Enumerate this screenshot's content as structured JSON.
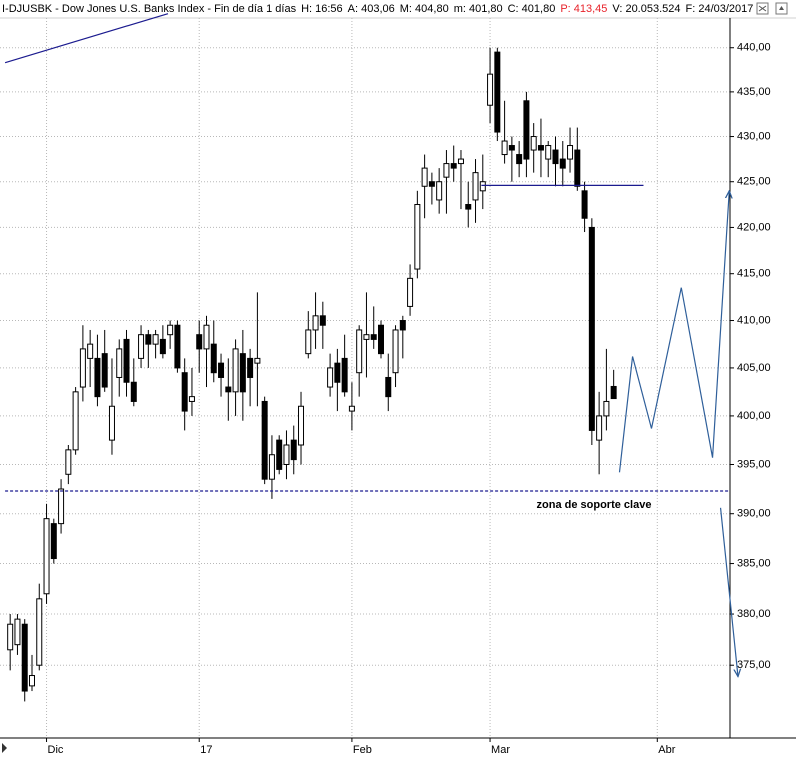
{
  "chart_data": {
    "type": "candlestick",
    "title": "I-DJUSBK - Dow Jones U.S. Banks Index - Fin de día 1 días",
    "header_fields": [
      {
        "text": "H: 16:56",
        "color": "#000000"
      },
      {
        "text": "A: 403,06",
        "color": "#000000"
      },
      {
        "text": "M: 404,80",
        "color": "#000000"
      },
      {
        "text": "m: 401,80",
        "color": "#000000"
      },
      {
        "text": "C: 401,80",
        "color": "#000000"
      },
      {
        "text": "P: 413,45",
        "color": "#e8222a"
      },
      {
        "text": "V: 20.053.524",
        "color": "#000000"
      },
      {
        "text": "F: 24/03/2017",
        "color": "#000000"
      }
    ],
    "x": [
      0,
      1,
      2,
      3,
      4,
      5,
      6,
      7,
      8,
      9,
      10,
      11,
      12,
      13,
      14,
      15,
      16,
      17,
      18,
      19,
      20,
      21,
      22,
      23,
      24,
      25,
      26,
      27,
      28,
      29,
      30,
      31,
      32,
      33,
      34,
      35,
      36,
      37,
      38,
      39,
      40,
      41,
      42,
      43,
      44,
      45,
      46,
      47,
      48,
      49,
      50,
      51,
      52,
      53,
      54,
      55,
      56,
      57,
      58,
      59,
      60,
      61,
      62,
      63,
      64,
      65,
      66,
      67,
      68,
      69,
      70,
      71,
      72,
      73,
      74,
      75,
      76,
      77,
      78,
      79,
      80,
      81,
      82,
      83
    ],
    "open": [
      376.5,
      377,
      379,
      373,
      375,
      382,
      389,
      389,
      394,
      396.5,
      403,
      406,
      406,
      406.5,
      397.5,
      404,
      408,
      403.5,
      406,
      408.5,
      407.5,
      408,
      408.5,
      409.5,
      404.5,
      401.5,
      408.5,
      407,
      407.5,
      405.5,
      403,
      402.5,
      406.5,
      406,
      405.5,
      401.5,
      393.5,
      397.5,
      395,
      397.5,
      397,
      406.5,
      409,
      410.5,
      403,
      405.5,
      406,
      400.5,
      404.5,
      408,
      408.5,
      409.5,
      404,
      404.5,
      410,
      411.5,
      415.5,
      424.5,
      425,
      423,
      425.5,
      427,
      427,
      422.5,
      423,
      424,
      433.5,
      439.5,
      428,
      429,
      428,
      434,
      428.5,
      429,
      427.5,
      428.5,
      427.5,
      427.5,
      428.5,
      424,
      420,
      397.5,
      400,
      403.06
    ],
    "high": [
      380,
      380,
      379.5,
      376,
      383,
      391,
      389.5,
      393.5,
      397,
      403,
      409.5,
      409,
      408.5,
      409,
      406,
      408,
      409,
      406,
      409.5,
      409,
      409,
      409.5,
      410,
      410,
      406,
      405,
      410,
      410.5,
      410,
      406.5,
      406,
      408,
      409,
      407,
      413,
      402,
      398,
      398,
      398.5,
      399,
      402.5,
      411,
      413,
      412,
      406.5,
      407,
      408.5,
      403.5,
      409.5,
      413,
      411.5,
      410,
      406.5,
      409.5,
      410.5,
      416,
      424,
      428,
      426,
      426.5,
      428.5,
      429,
      428.5,
      425,
      427.5,
      428,
      440,
      440,
      434,
      430,
      429.5,
      435,
      431.5,
      432,
      429.5,
      430,
      429.5,
      431,
      431,
      425,
      421,
      402.5,
      407,
      404.8
    ],
    "low": [
      374.5,
      376,
      371.5,
      372.5,
      374.5,
      381,
      385,
      388,
      393,
      396,
      401.5,
      403,
      401,
      402.5,
      396,
      402,
      402,
      401,
      405,
      405,
      406,
      406,
      407,
      404.5,
      398.5,
      400,
      404.5,
      403,
      403.5,
      402,
      399.5,
      400,
      399.5,
      401,
      401,
      393,
      391.5,
      394,
      393.5,
      394,
      395,
      406,
      407,
      407,
      402,
      400.5,
      402,
      398.5,
      402,
      404,
      407,
      406,
      400.5,
      403,
      406,
      410.5,
      414.5,
      421,
      422.5,
      421.5,
      421.5,
      425,
      422,
      420,
      420.5,
      422,
      431.5,
      429.5,
      427,
      425,
      425.5,
      425.5,
      426,
      425.5,
      425.5,
      424.5,
      424.5,
      426,
      424,
      419.5,
      397,
      394,
      398.5,
      401.8
    ],
    "close": [
      379,
      379.5,
      372.5,
      374,
      381.5,
      389.5,
      385.5,
      392.5,
      396.5,
      402.5,
      407,
      407.5,
      402,
      403,
      401,
      407,
      403.5,
      401.5,
      408.5,
      407.5,
      408.5,
      406.5,
      409.5,
      405,
      400.5,
      402,
      407,
      409.5,
      404.5,
      404,
      402.5,
      407,
      402.5,
      404,
      406,
      393.5,
      396,
      394.5,
      397,
      395.5,
      401,
      409,
      410.5,
      409.5,
      405,
      403.5,
      402.5,
      401,
      409,
      408.5,
      408,
      406.5,
      402,
      409,
      409,
      414.5,
      422.5,
      426.5,
      424.5,
      425,
      427,
      426.5,
      427.5,
      422,
      426,
      425,
      437,
      430.5,
      429.5,
      428.5,
      427,
      427.5,
      430,
      428.5,
      429,
      427,
      426.5,
      429,
      424.5,
      421,
      398.5,
      400,
      401.5,
      401.8
    ],
    "colors": {
      "up": "#ffffff",
      "down": "#000000",
      "outline": "#000000"
    },
    "xlim": [
      -1.4,
      99
    ],
    "ylim": [
      368,
      443.4
    ],
    "log_scale": true,
    "grid": true,
    "xticks": [
      {
        "value": 5,
        "label": "Dic"
      },
      {
        "value": 26,
        "label": "17"
      },
      {
        "value": 47,
        "label": "Feb"
      },
      {
        "value": 66,
        "label": "Mar"
      },
      {
        "value": 89,
        "label": "Abr"
      }
    ],
    "yticks": [
      {
        "value": 375,
        "label": "375,00"
      },
      {
        "value": 380,
        "label": "380,00"
      },
      {
        "value": 385,
        "label": "385,00"
      },
      {
        "value": 390,
        "label": "390,00"
      },
      {
        "value": 395,
        "label": "395,00"
      },
      {
        "value": 400,
        "label": "400,00"
      },
      {
        "value": 405,
        "label": "405,00"
      },
      {
        "value": 410,
        "label": "410,00"
      },
      {
        "value": 415,
        "label": "415,00"
      },
      {
        "value": 420,
        "label": "420,00"
      },
      {
        "value": 425,
        "label": "425,00"
      },
      {
        "value": 430,
        "label": "430,00"
      },
      {
        "value": 435,
        "label": "435,00"
      },
      {
        "value": 440,
        "label": "440,00"
      }
    ],
    "lines": [
      {
        "color": "#1b1b8f",
        "dashed": false,
        "arrow": false,
        "x": [
          -0.7,
          21.7
        ],
        "y": [
          438.3,
          443.9
        ]
      },
      {
        "color": "#1b1b8f",
        "dashed": false,
        "arrow": false,
        "x": [
          64.8,
          87.1
        ],
        "y": [
          424.6,
          424.6
        ]
      },
      {
        "color": "#1b1b8f",
        "dashed": true,
        "arrow": false,
        "x": [
          -0.7,
          99
        ],
        "y": [
          392.3,
          392.3
        ]
      },
      {
        "color": "#2f5f9a",
        "dashed": false,
        "arrow": true,
        "x": [
          83.8,
          85.6,
          88.2,
          92.3,
          96.6,
          98.9
        ],
        "y": [
          394.2,
          406.2,
          398.7,
          413.5,
          395.7,
          424.0
        ]
      },
      {
        "color": "#2f5f9a",
        "dashed": false,
        "arrow": true,
        "x": [
          97.7,
          100.1
        ],
        "y": [
          390.6,
          373.9
        ]
      }
    ],
    "annotation": {
      "text": "zona de soporte clave",
      "color": "#1f4f8a"
    }
  }
}
